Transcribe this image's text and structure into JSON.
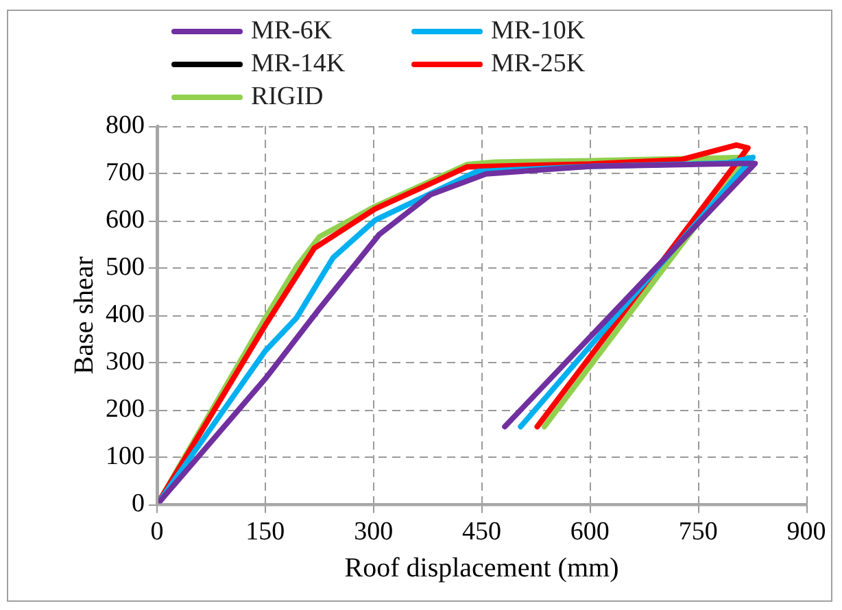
{
  "chart_data": {
    "type": "line",
    "xlabel": "Roof displacement (mm)",
    "ylabel": "Base shear",
    "xlim": [
      0,
      900
    ],
    "xticks": [
      0,
      150,
      300,
      450,
      600,
      750,
      900
    ],
    "ylim": [
      0,
      800
    ],
    "yticks": [
      0,
      100,
      200,
      300,
      400,
      500,
      600,
      700,
      800
    ],
    "grid": true,
    "legend": "top",
    "marker": "none",
    "line_style": "solid",
    "series": [
      {
        "name": "MR-6K",
        "color": "#7030a0",
        "x": [
          0,
          150,
          225,
          308,
          379,
          456,
          600,
          810,
          829,
          482
        ],
        "values": [
          0,
          266,
          414,
          571,
          655,
          699,
          715,
          721,
          721,
          165
        ]
      },
      {
        "name": "MR-10K",
        "color": "#00b0f0",
        "x": [
          0,
          150,
          193,
          244,
          302,
          443,
          600,
          790,
          826,
          504
        ],
        "values": [
          0,
          325,
          394,
          522,
          601,
          704,
          715,
          722,
          734,
          165
        ]
      },
      {
        "name": "MR-14K",
        "color": "#000000"
      },
      {
        "name": "MR-25K",
        "color": "#ff0000",
        "x": [
          0,
          150,
          218,
          302,
          430,
          600,
          726,
          803,
          819,
          527
        ],
        "values": [
          0,
          379,
          542,
          625,
          714,
          720,
          729,
          760,
          754,
          165
        ]
      },
      {
        "name": "RIGID",
        "color": "#92d050",
        "x": [
          0,
          150,
          193,
          225,
          302,
          430,
          468,
          600,
          819,
          752,
          537
        ],
        "values": [
          0,
          394,
          502,
          566,
          630,
          719,
          724,
          727,
          734,
          600,
          165
        ]
      }
    ]
  }
}
